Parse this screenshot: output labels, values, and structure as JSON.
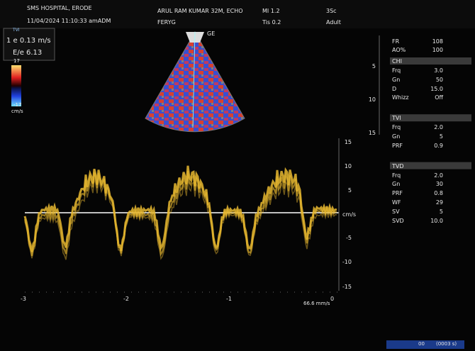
{
  "header": {
    "hospital": "SMS HOSPITAL, ERODE",
    "datetime": "11/04/2024 11:10:33 amADM",
    "patient": "ARUL RAM KUMAR 32M, ECHO",
    "operator": "FERYG",
    "mi": "MI 1.2",
    "tis": "Tis 0.2",
    "probe": "3Sc",
    "preset": "Adult"
  },
  "mode": "TVI",
  "measurements": [
    "1 e 0.13 m/s",
    "E/e 6.13"
  ],
  "color_bar": {
    "max": "17",
    "min": "-17",
    "unit": "cm/s"
  },
  "sector": {
    "brand": "GE",
    "depth_ticks": [
      "5",
      "10",
      "15"
    ]
  },
  "params": {
    "top": [
      [
        "FR",
        "108"
      ],
      [
        "AO%",
        "100"
      ]
    ],
    "groups": [
      {
        "title": "CHI",
        "rows": [
          [
            "Frq",
            "3.0"
          ],
          [
            "Gn",
            "50"
          ],
          [
            "D",
            "15.0"
          ],
          [
            "Whizz",
            "Off"
          ]
        ]
      },
      {
        "title": "TVI",
        "rows": [
          [
            "Frq",
            "2.0"
          ],
          [
            "Gn",
            "5"
          ],
          [
            "PRF",
            "0.9"
          ]
        ]
      },
      {
        "title": "TVD",
        "rows": [
          [
            "Frq",
            "2.0"
          ],
          [
            "Gn",
            "30"
          ],
          [
            "PRF",
            "0.8"
          ],
          [
            "WF",
            "29"
          ],
          [
            "SV",
            "5"
          ],
          [
            "SVD",
            "10.0"
          ]
        ]
      }
    ]
  },
  "doppler": {
    "yticks": [
      "15",
      "10",
      "5",
      "-5",
      "-10",
      "-15"
    ],
    "unit": "cm/s",
    "xticks": [
      "-3",
      "-2",
      "-1",
      "0"
    ],
    "sweep": "66.6 mm/s"
  },
  "footer": {
    "frame": "00",
    "time": "(0003 s)"
  }
}
